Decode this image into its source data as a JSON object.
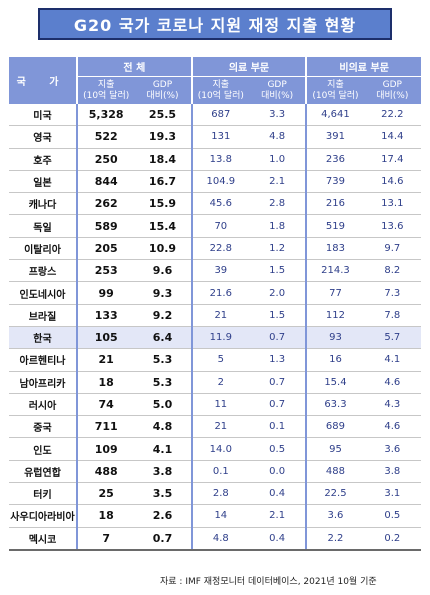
{
  "title": "G20 국가 코로나 지원 재정 지출 현황",
  "header": {
    "country": "국 가",
    "groups": [
      "전 체",
      "의료 부문",
      "비의료 부문"
    ],
    "spend_label": [
      "지출",
      "(10억 달러)"
    ],
    "gdp_label": [
      "GDP",
      "대비(%)"
    ]
  },
  "rows": [
    {
      "country": "미국",
      "total": "5,328",
      "total_gdp": "25.5",
      "med": "687",
      "med_gdp": "3.3",
      "nonmed": "4,641",
      "nonmed_gdp": "22.2"
    },
    {
      "country": "영국",
      "total": "522",
      "total_gdp": "19.3",
      "med": "131",
      "med_gdp": "4.8",
      "nonmed": "391",
      "nonmed_gdp": "14.4"
    },
    {
      "country": "호주",
      "total": "250",
      "total_gdp": "18.4",
      "med": "13.8",
      "med_gdp": "1.0",
      "nonmed": "236",
      "nonmed_gdp": "17.4"
    },
    {
      "country": "일본",
      "total": "844",
      "total_gdp": "16.7",
      "med": "104.9",
      "med_gdp": "2.1",
      "nonmed": "739",
      "nonmed_gdp": "14.6"
    },
    {
      "country": "캐나다",
      "total": "262",
      "total_gdp": "15.9",
      "med": "45.6",
      "med_gdp": "2.8",
      "nonmed": "216",
      "nonmed_gdp": "13.1"
    },
    {
      "country": "독일",
      "total": "589",
      "total_gdp": "15.4",
      "med": "70",
      "med_gdp": "1.8",
      "nonmed": "519",
      "nonmed_gdp": "13.6"
    },
    {
      "country": "이탈리아",
      "total": "205",
      "total_gdp": "10.9",
      "med": "22.8",
      "med_gdp": "1.2",
      "nonmed": "183",
      "nonmed_gdp": "9.7"
    },
    {
      "country": "프랑스",
      "total": "253",
      "total_gdp": "9.6",
      "med": "39",
      "med_gdp": "1.5",
      "nonmed": "214.3",
      "nonmed_gdp": "8.2"
    },
    {
      "country": "인도네시아",
      "total": "99",
      "total_gdp": "9.3",
      "med": "21.6",
      "med_gdp": "2.0",
      "nonmed": "77",
      "nonmed_gdp": "7.3"
    },
    {
      "country": "브라질",
      "total": "133",
      "total_gdp": "9.2",
      "med": "21",
      "med_gdp": "1.5",
      "nonmed": "112",
      "nonmed_gdp": "7.8"
    },
    {
      "country": "한국",
      "total": "105",
      "total_gdp": "6.4",
      "med": "11.9",
      "med_gdp": "0.7",
      "nonmed": "93",
      "nonmed_gdp": "5.7",
      "highlight": true
    },
    {
      "country": "아르헨티나",
      "total": "21",
      "total_gdp": "5.3",
      "med": "5",
      "med_gdp": "1.3",
      "nonmed": "16",
      "nonmed_gdp": "4.1"
    },
    {
      "country": "남아프리카",
      "total": "18",
      "total_gdp": "5.3",
      "med": "2",
      "med_gdp": "0.7",
      "nonmed": "15.4",
      "nonmed_gdp": "4.6"
    },
    {
      "country": "러시아",
      "total": "74",
      "total_gdp": "5.0",
      "med": "11",
      "med_gdp": "0.7",
      "nonmed": "63.3",
      "nonmed_gdp": "4.3"
    },
    {
      "country": "중국",
      "total": "711",
      "total_gdp": "4.8",
      "med": "21",
      "med_gdp": "0.1",
      "nonmed": "689",
      "nonmed_gdp": "4.6"
    },
    {
      "country": "인도",
      "total": "109",
      "total_gdp": "4.1",
      "med": "14.0",
      "med_gdp": "0.5",
      "nonmed": "95",
      "nonmed_gdp": "3.6"
    },
    {
      "country": "유럽연합",
      "total": "488",
      "total_gdp": "3.8",
      "med": "0.1",
      "med_gdp": "0.0",
      "nonmed": "488",
      "nonmed_gdp": "3.8"
    },
    {
      "country": "터키",
      "total": "25",
      "total_gdp": "3.5",
      "med": "2.8",
      "med_gdp": "0.4",
      "nonmed": "22.5",
      "nonmed_gdp": "3.1"
    },
    {
      "country": "사우디아라비아",
      "total": "18",
      "total_gdp": "2.6",
      "med": "14",
      "med_gdp": "2.1",
      "nonmed": "3.6",
      "nonmed_gdp": "0.5"
    },
    {
      "country": "멕시코",
      "total": "7",
      "total_gdp": "0.7",
      "med": "4.8",
      "med_gdp": "0.4",
      "nonmed": "2.2",
      "nonmed_gdp": "0.2"
    }
  ],
  "source": "자료 : IMF 재정모니터 데이터베이스, 2021년 10월 기준",
  "colors": {
    "title_bg": "#5b7fcd",
    "header_bg": "#8096d8",
    "highlight_row": "#e3e7f7",
    "sub_text": "#2f3f8a"
  }
}
